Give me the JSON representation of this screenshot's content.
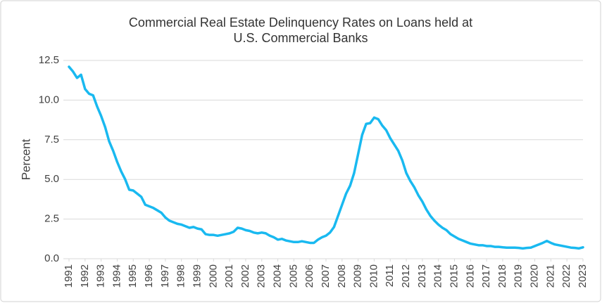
{
  "chart_data": {
    "type": "line",
    "title": [
      "Commercial Real Estate Delinquency Rates on Loans held at",
      "U.S. Commercial Banks"
    ],
    "ylabel": "Percent",
    "x": [
      1991,
      1991.25,
      1991.5,
      1991.75,
      1992,
      1992.25,
      1992.5,
      1992.75,
      1993,
      1993.25,
      1993.5,
      1993.75,
      1994,
      1994.25,
      1994.5,
      1994.75,
      1995,
      1995.25,
      1995.5,
      1995.75,
      1996,
      1996.25,
      1996.5,
      1996.75,
      1997,
      1997.25,
      1997.5,
      1997.75,
      1998,
      1998.25,
      1998.5,
      1998.75,
      1999,
      1999.25,
      1999.5,
      1999.75,
      2000,
      2000.25,
      2000.5,
      2000.75,
      2001,
      2001.25,
      2001.5,
      2001.75,
      2002,
      2002.25,
      2002.5,
      2002.75,
      2003,
      2003.25,
      2003.5,
      2003.75,
      2004,
      2004.25,
      2004.5,
      2004.75,
      2005,
      2005.25,
      2005.5,
      2005.75,
      2006,
      2006.25,
      2006.5,
      2006.75,
      2007,
      2007.25,
      2007.5,
      2007.75,
      2008,
      2008.25,
      2008.5,
      2008.75,
      2009,
      2009.25,
      2009.5,
      2009.75,
      2010,
      2010.25,
      2010.5,
      2010.75,
      2011,
      2011.25,
      2011.5,
      2011.75,
      2012,
      2012.25,
      2012.5,
      2012.75,
      2013,
      2013.25,
      2013.5,
      2013.75,
      2014,
      2014.25,
      2014.5,
      2014.75,
      2015,
      2015.25,
      2015.5,
      2015.75,
      2016,
      2016.25,
      2016.5,
      2016.75,
      2017,
      2017.25,
      2017.5,
      2017.75,
      2018,
      2018.25,
      2018.5,
      2018.75,
      2019,
      2019.25,
      2019.5,
      2019.75,
      2020,
      2020.25,
      2020.5,
      2020.75,
      2021,
      2021.25,
      2021.5,
      2021.75,
      2022,
      2022.25,
      2022.5,
      2022.75,
      2023
    ],
    "series": [
      {
        "color": "#19b9f0",
        "values": [
          12.1,
          11.8,
          11.4,
          11.6,
          10.7,
          10.4,
          10.3,
          9.6,
          9.0,
          8.3,
          7.4,
          6.8,
          6.1,
          5.5,
          5.0,
          4.35,
          4.3,
          4.1,
          3.9,
          3.4,
          3.3,
          3.2,
          3.05,
          2.9,
          2.6,
          2.4,
          2.3,
          2.2,
          2.15,
          2.05,
          1.95,
          2.0,
          1.9,
          1.85,
          1.55,
          1.5,
          1.5,
          1.45,
          1.5,
          1.55,
          1.6,
          1.7,
          1.95,
          1.9,
          1.8,
          1.75,
          1.65,
          1.6,
          1.65,
          1.6,
          1.45,
          1.35,
          1.2,
          1.25,
          1.15,
          1.1,
          1.05,
          1.05,
          1.1,
          1.05,
          1.0,
          1.0,
          1.2,
          1.35,
          1.45,
          1.65,
          2.0,
          2.7,
          3.4,
          4.1,
          4.6,
          5.4,
          6.6,
          7.8,
          8.5,
          8.55,
          8.9,
          8.8,
          8.4,
          8.1,
          7.6,
          7.2,
          6.8,
          6.2,
          5.4,
          4.9,
          4.5,
          4.0,
          3.6,
          3.1,
          2.7,
          2.4,
          2.15,
          1.95,
          1.8,
          1.55,
          1.4,
          1.25,
          1.15,
          1.05,
          0.95,
          0.9,
          0.85,
          0.85,
          0.8,
          0.8,
          0.75,
          0.75,
          0.72,
          0.7,
          0.7,
          0.7,
          0.68,
          0.65,
          0.68,
          0.7,
          0.8,
          0.9,
          1.0,
          1.12,
          1.0,
          0.9,
          0.85,
          0.8,
          0.75,
          0.7,
          0.68,
          0.65,
          0.72
        ]
      }
    ],
    "xlim": [
      1991,
      2023
    ],
    "xticks": [
      1991,
      1992,
      1993,
      1994,
      1995,
      1996,
      1997,
      1998,
      1999,
      2000,
      2001,
      2002,
      2003,
      2004,
      2005,
      2006,
      2007,
      2008,
      2009,
      2010,
      2011,
      2012,
      2013,
      2014,
      2015,
      2016,
      2017,
      2018,
      2019,
      2020,
      2021,
      2022,
      2023
    ],
    "ylim": [
      0,
      12.5
    ],
    "yticks": [
      {
        "value": 0,
        "label": "0.0"
      },
      2.5,
      {
        "value": 5,
        "label": "5.0"
      },
      7.5,
      {
        "value": 10,
        "label": "10.0"
      },
      12.5
    ],
    "grid": true
  }
}
